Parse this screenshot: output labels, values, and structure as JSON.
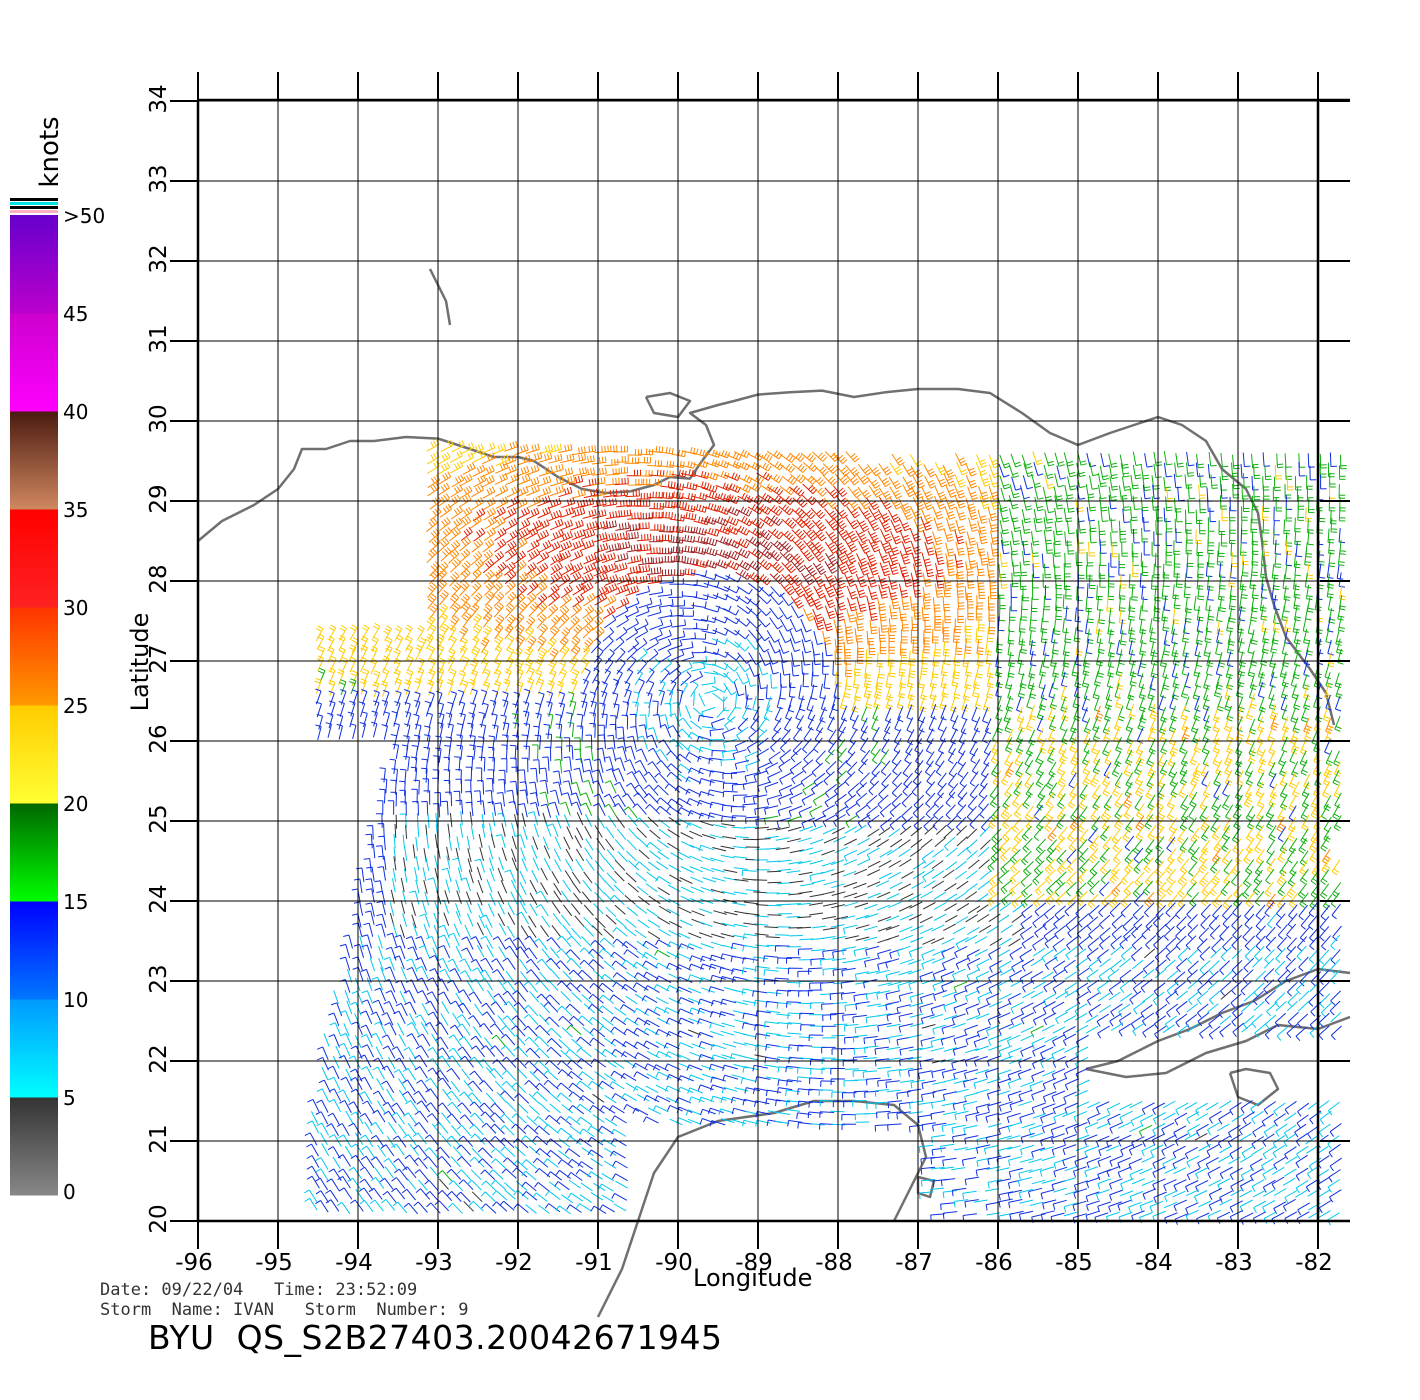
{
  "map": {
    "xlabel": "Longitude",
    "ylabel": "Latitude",
    "lon_ticks": [
      -96,
      -95,
      -94,
      -93,
      -92,
      -91,
      -90,
      -89,
      -88,
      -87,
      -86,
      -85,
      -84,
      -83,
      -82
    ],
    "lon_tick_labels": [
      "-96",
      "-95",
      "-94",
      "-93",
      "-92",
      "-91",
      "-90",
      "-89",
      "-88",
      "-87",
      "-86",
      "-85",
      "-84",
      "-83",
      "-82"
    ],
    "lat_ticks": [
      20,
      21,
      22,
      23,
      24,
      25,
      26,
      27,
      28,
      29,
      30,
      31,
      32,
      33,
      34
    ],
    "lat_tick_labels": [
      "20",
      "21",
      "22",
      "23",
      "24",
      "25",
      "26",
      "27",
      "28",
      "29",
      "30",
      "31",
      "32",
      "33",
      "34"
    ],
    "lon_range": [
      -96,
      -81.6
    ],
    "lat_range": [
      20,
      34
    ],
    "grid": true,
    "storm_center": {
      "lon": -89.6,
      "lat": 26.5
    }
  },
  "legend": {
    "unit": "knots",
    "stops": [
      {
        "label": "0",
        "value": 0
      },
      {
        "label": "5",
        "value": 5
      },
      {
        "label": "10",
        "value": 10
      },
      {
        "label": "15",
        "value": 15
      },
      {
        "label": "20",
        "value": 20
      },
      {
        "label": "25",
        "value": 25
      },
      {
        "label": "30",
        "value": 30
      },
      {
        "label": "35",
        "value": 35
      },
      {
        "label": "40",
        "value": 40
      },
      {
        "label": "45",
        "value": 45
      },
      {
        "label": ">50",
        "value": 50
      }
    ],
    "bands": [
      {
        "from": 0,
        "to": 5,
        "top": "#333333",
        "bottom": "#888888"
      },
      {
        "from": 5,
        "to": 10,
        "top": "#0099ff",
        "bottom": "#00ffff"
      },
      {
        "from": 10,
        "to": 15,
        "top": "#0000ff",
        "bottom": "#0077ff"
      },
      {
        "from": 15,
        "to": 20,
        "top": "#006600",
        "bottom": "#00ff00"
      },
      {
        "from": 20,
        "to": 25,
        "top": "#ffcc00",
        "bottom": "#ffff33"
      },
      {
        "from": 25,
        "to": 30,
        "top": "#ff3300",
        "bottom": "#ff9900"
      },
      {
        "from": 30,
        "to": 35,
        "top": "#ff0000",
        "bottom": "#ff2222"
      },
      {
        "from": 35,
        "to": 40,
        "top": "#4a1a10",
        "bottom": "#d08860"
      },
      {
        "from": 40,
        "to": 45,
        "top": "#cc00cc",
        "bottom": "#ff00ff"
      },
      {
        "from": 45,
        "to": 50,
        "top": "#6600cc",
        "bottom": "#bb00cc"
      }
    ]
  },
  "colors": {
    "land": "#707070",
    "grid": "#000000"
  },
  "footer": {
    "line1": "Date: 09/22/04   Time: 23:52:09",
    "line2": "Storm  Name: IVAN   Storm  Number: 9",
    "product": "BYU  QS_S2B27403.20042671945"
  }
}
